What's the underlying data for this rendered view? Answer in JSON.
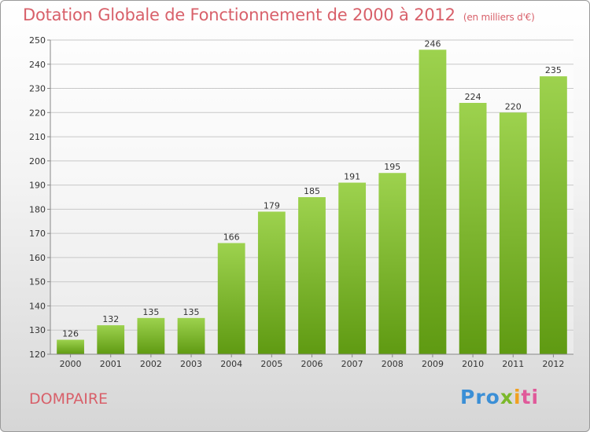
{
  "title": "Dotation Globale de Fonctionnement de 2000 à 2012",
  "unit": "(en milliers d'€)",
  "commune": "DOMPAIRE",
  "logo": {
    "p1": "Pro",
    "p2": "x",
    "p3": "i",
    "p4": "ti"
  },
  "chart_data": {
    "type": "bar",
    "categories": [
      "2000",
      "2001",
      "2002",
      "2003",
      "2004",
      "2005",
      "2006",
      "2007",
      "2008",
      "2009",
      "2010",
      "2011",
      "2012"
    ],
    "values": [
      126,
      132,
      135,
      135,
      166,
      179,
      185,
      191,
      195,
      246,
      224,
      220,
      235
    ],
    "ylim": [
      120,
      250
    ],
    "yticks": [
      120,
      130,
      140,
      150,
      160,
      170,
      180,
      190,
      200,
      210,
      220,
      230,
      240,
      250
    ],
    "grid": true,
    "colors": {
      "bar_top": "#9dd24e",
      "bar_bottom": "#5f9a12",
      "grid": "#c8c8c8"
    }
  }
}
